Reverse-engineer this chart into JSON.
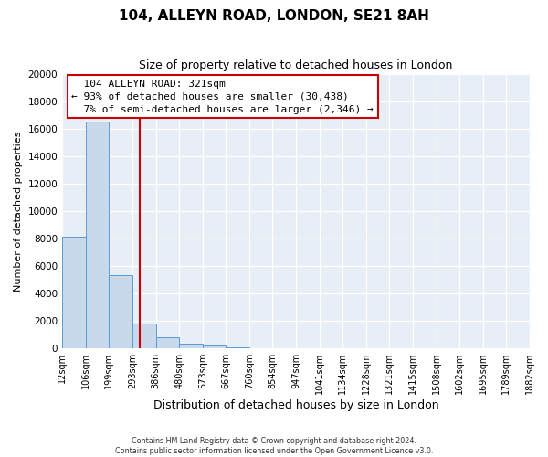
{
  "title": "104, ALLEYN ROAD, LONDON, SE21 8AH",
  "subtitle": "Size of property relative to detached houses in London",
  "xlabel": "Distribution of detached houses by size in London",
  "ylabel": "Number of detached properties",
  "bin_labels": [
    "12sqm",
    "106sqm",
    "199sqm",
    "293sqm",
    "386sqm",
    "480sqm",
    "573sqm",
    "667sqm",
    "760sqm",
    "854sqm",
    "947sqm",
    "1041sqm",
    "1134sqm",
    "1228sqm",
    "1321sqm",
    "1415sqm",
    "1508sqm",
    "1602sqm",
    "1695sqm",
    "1789sqm",
    "1882sqm"
  ],
  "bar_values": [
    8100,
    16500,
    5300,
    1800,
    800,
    350,
    200,
    100,
    0,
    0,
    0,
    0,
    0,
    0,
    0,
    0,
    0,
    0,
    0,
    0
  ],
  "bar_color": "#c9d9ec",
  "bar_edge_color": "#5b9bd5",
  "property_value": 321,
  "property_label": "104 ALLEYN ROAD: 321sqm",
  "pct_smaller": 93,
  "count_smaller": 30438,
  "pct_larger": 7,
  "count_larger": 2346,
  "red_line_color": "#cc0000",
  "annotation_box_edge": "#cc0000",
  "ylim": [
    0,
    20000
  ],
  "yticks": [
    0,
    2000,
    4000,
    6000,
    8000,
    10000,
    12000,
    14000,
    16000,
    18000,
    20000
  ],
  "footer1": "Contains HM Land Registry data © Crown copyright and database right 2024.",
  "footer2": "Contains public sector information licensed under the Open Government Licence v3.0.",
  "bg_color": "#ffffff",
  "plot_bg_color": "#e8eef5",
  "grid_color": "#ffffff"
}
